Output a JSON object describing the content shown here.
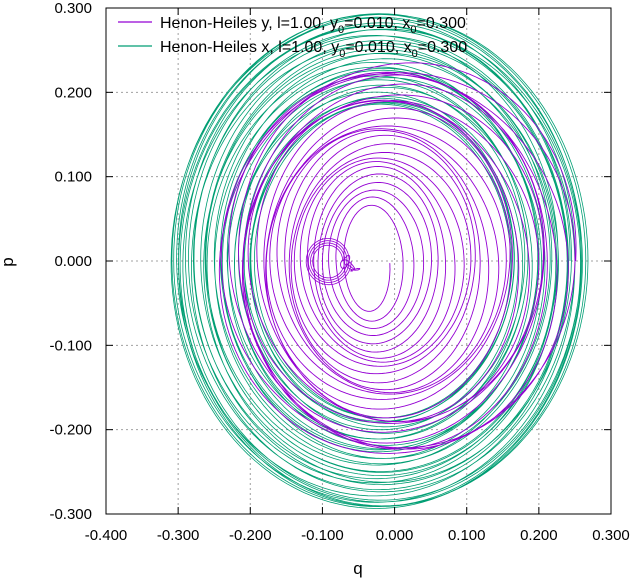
{
  "chart_data": {
    "type": "line",
    "title": "",
    "xlabel": "q",
    "ylabel": "p",
    "xlim": [
      -0.4,
      0.3
    ],
    "ylim": [
      -0.3,
      0.3
    ],
    "grid": true,
    "legend_position": "top-left",
    "x_ticks": [
      "-0.400",
      "-0.300",
      "-0.200",
      "-0.100",
      "0.000",
      "0.100",
      "0.200",
      "0.300"
    ],
    "y_ticks": [
      "-0.300",
      "-0.200",
      "-0.100",
      "0.000",
      "0.100",
      "0.200",
      "0.300"
    ],
    "series": [
      {
        "name": "Henon-Heiles y, l=1.00, y0=0.010, x0=0.300",
        "legend_main": "Henon-Heiles y, l=1.00, y",
        "legend_sub": "0",
        "legend_mid": "=0.010, x",
        "legend_end": "=0.300",
        "color": "#9400d3",
        "description": "inward spiral from outer orbit (q from -0.24 to 0.25, p ±0.24) down to a small loop near q≈-0.03, with a thin tail near q≈-0.07"
      },
      {
        "name": "Henon-Heiles x, l=1.00, y0=0.010, x0=0.300",
        "legend_main": "Henon-Heiles x, l=1.00, y",
        "legend_sub": "0",
        "legend_mid": "=0.010, x",
        "legend_end": "=0.300",
        "color": "#009e73",
        "description": "annular band of quasi-periodic orbits, q from -0.32 to 0.30, p ±0.29, inner edge q≈-0.20..0.16, p≈±0.19"
      }
    ]
  }
}
